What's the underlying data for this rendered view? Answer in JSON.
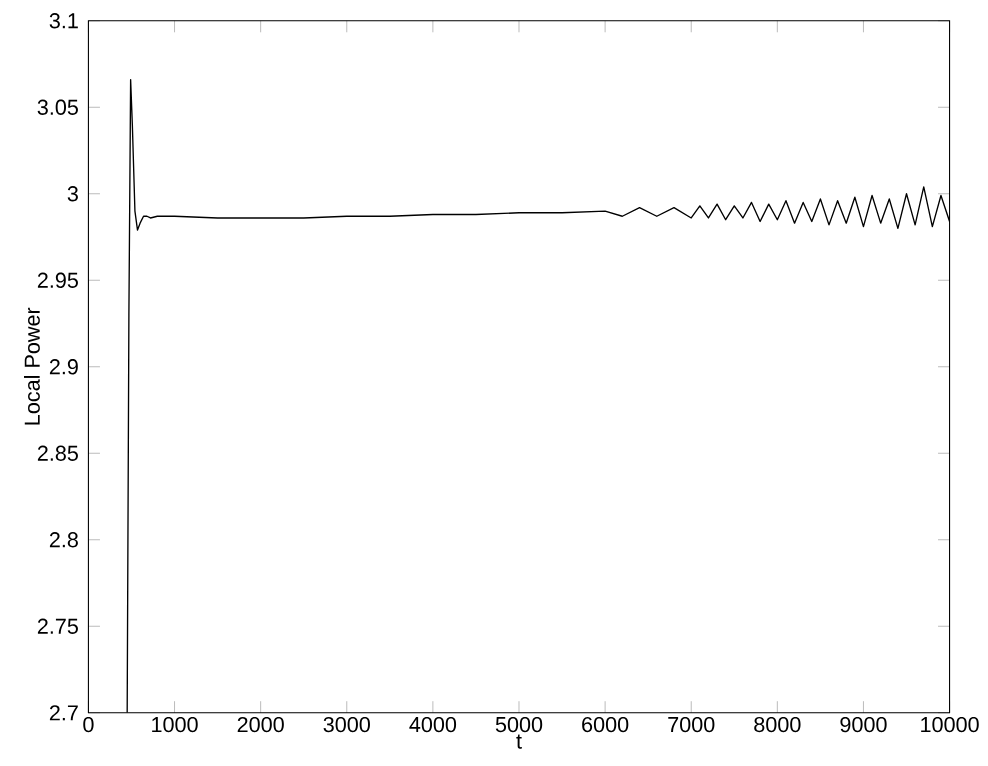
{
  "chart_data": {
    "type": "line",
    "xlabel": "t",
    "ylabel": "Local Power",
    "xlim": [
      0,
      10000
    ],
    "ylim": [
      2.7,
      3.1
    ],
    "xticks": [
      0,
      1000,
      2000,
      3000,
      4000,
      5000,
      6000,
      7000,
      8000,
      9000,
      10000
    ],
    "yticks": [
      2.7,
      2.75,
      2.8,
      2.85,
      2.9,
      2.95,
      3,
      3.05,
      3.1
    ],
    "series": [
      {
        "color": "#000000",
        "x": [
          450,
          470,
          490,
          510,
          540,
          570,
          600,
          640,
          680,
          720,
          800,
          1000,
          1500,
          2000,
          2500,
          3000,
          3500,
          4000,
          4500,
          5000,
          5500,
          6000,
          6200,
          6400,
          6600,
          6800,
          7000,
          7100,
          7200,
          7300,
          7400,
          7500,
          7600,
          7700,
          7800,
          7900,
          8000,
          8100,
          8200,
          8300,
          8400,
          8500,
          8600,
          8700,
          8800,
          8900,
          9000,
          9100,
          9200,
          9300,
          9400,
          9500,
          9600,
          9700,
          9800,
          9900,
          10000
        ],
        "values": [
          2.7,
          2.93,
          3.066,
          3.04,
          2.99,
          2.979,
          2.983,
          2.987,
          2.987,
          2.986,
          2.987,
          2.987,
          2.986,
          2.986,
          2.986,
          2.987,
          2.987,
          2.988,
          2.988,
          2.989,
          2.989,
          2.99,
          2.987,
          2.992,
          2.987,
          2.992,
          2.986,
          2.993,
          2.986,
          2.994,
          2.985,
          2.993,
          2.986,
          2.995,
          2.984,
          2.994,
          2.985,
          2.996,
          2.983,
          2.995,
          2.984,
          2.997,
          2.982,
          2.996,
          2.983,
          2.998,
          2.981,
          2.999,
          2.983,
          2.997,
          2.98,
          3.0,
          2.982,
          3.004,
          2.981,
          2.999,
          2.984
        ]
      }
    ]
  }
}
